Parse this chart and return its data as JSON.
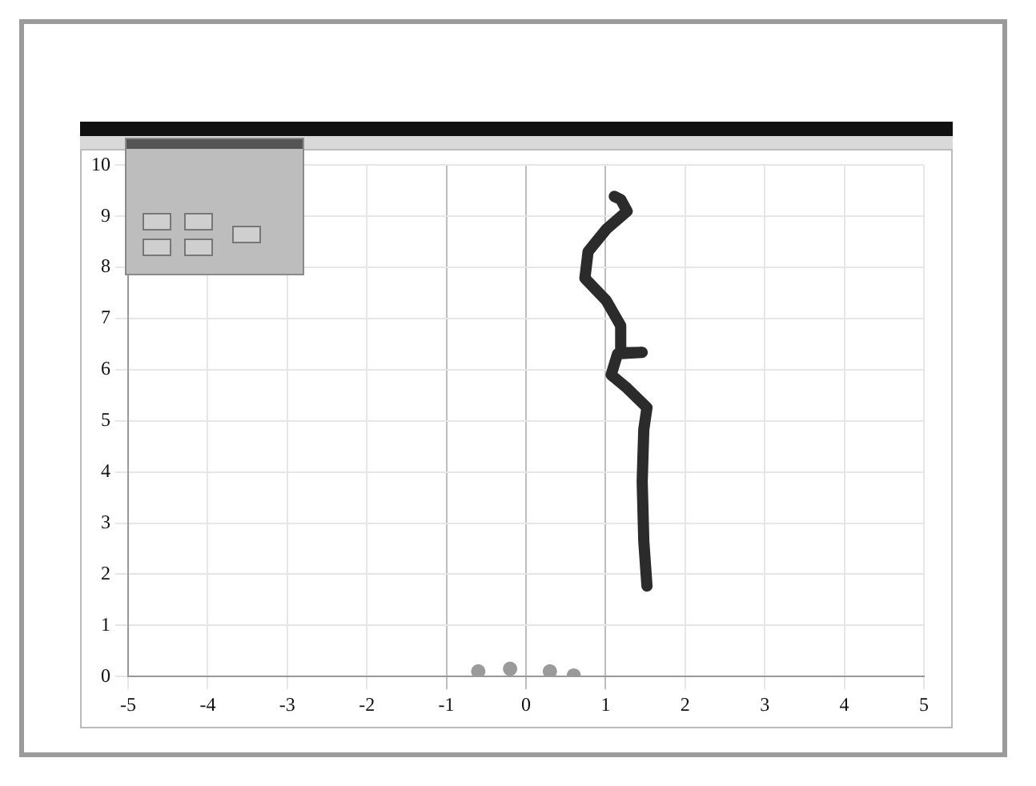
{
  "chart_data": {
    "type": "line",
    "xlim": [
      -5,
      5
    ],
    "xticks": [
      -5,
      -4,
      -3,
      -2,
      -1,
      0,
      1,
      2,
      3,
      4,
      5
    ],
    "ylim": [
      0,
      10
    ],
    "yticks": [
      0,
      1,
      2,
      3,
      4,
      5,
      6,
      7,
      8,
      9,
      10
    ],
    "grid": true,
    "legend": false,
    "line_style": "solid",
    "series": [
      {
        "marker": "none",
        "color": "#2b2b2b",
        "x": [
          1.52,
          1.48,
          1.46,
          1.48,
          1.52,
          1.27,
          1.07,
          1.15,
          1.46,
          1.18,
          1.19,
          1.01,
          0.74,
          0.78,
          1.01,
          1.27,
          1.19,
          1.11
        ],
        "values": [
          1.77,
          2.65,
          3.81,
          4.83,
          5.26,
          5.64,
          5.9,
          6.31,
          6.34,
          6.33,
          6.86,
          7.35,
          7.79,
          8.31,
          8.75,
          9.1,
          9.33,
          9.39
        ]
      },
      {
        "type": "scatter",
        "marker": "circle",
        "color": "#9a9a9a",
        "x": [
          -0.6,
          -0.2,
          0.3,
          0.6
        ],
        "values": [
          0.1,
          0.15,
          0.1,
          0.02
        ]
      }
    ]
  }
}
